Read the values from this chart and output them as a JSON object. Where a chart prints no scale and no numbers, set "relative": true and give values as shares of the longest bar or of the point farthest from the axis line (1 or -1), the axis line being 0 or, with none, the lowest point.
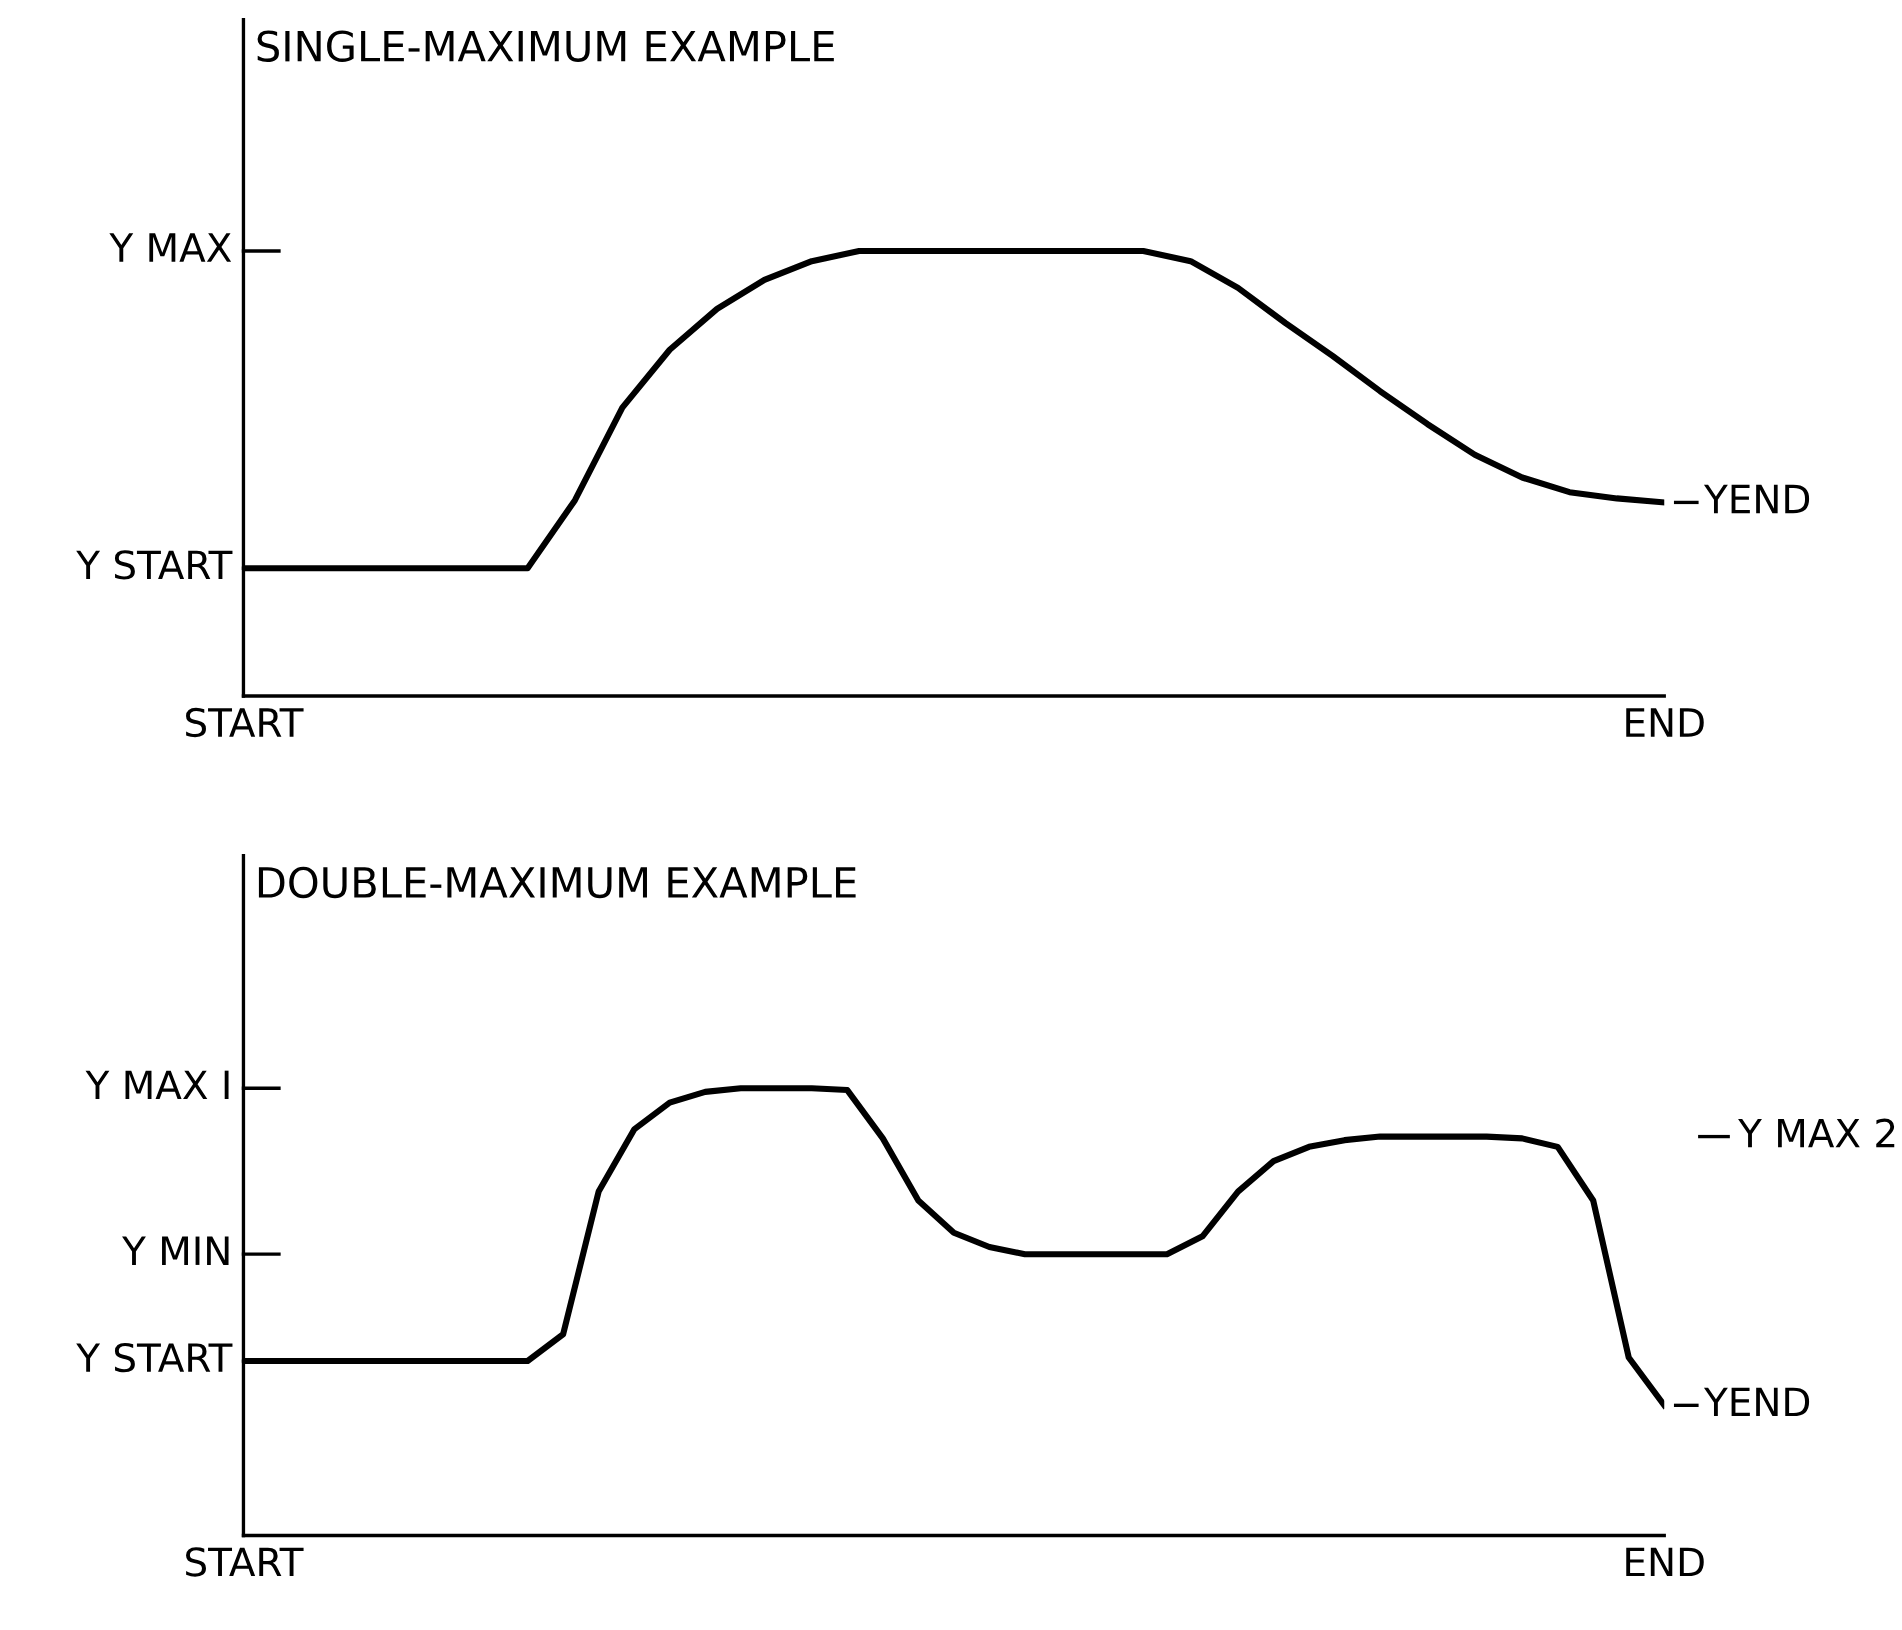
{
  "chart_data": [
    {
      "type": "line",
      "title": "SINGLE-MAXIMUM EXAMPLE",
      "relative": true,
      "categories": [
        "START",
        null,
        null,
        null,
        null,
        null,
        null,
        null,
        null,
        null,
        null,
        null,
        null,
        null,
        null,
        null,
        null,
        null,
        null,
        null,
        null,
        null,
        null,
        null,
        null,
        null,
        null,
        null,
        null,
        null,
        "END"
      ],
      "series": [
        {
          "color": "#000000",
          "values": [
            0.287,
            0.287,
            0.287,
            0.287,
            0.287,
            0.287,
            0.287,
            0.44,
            0.648,
            0.778,
            0.87,
            0.935,
            0.977,
            1.0,
            1.0,
            1.0,
            1.0,
            1.0,
            1.0,
            1.0,
            0.977,
            0.917,
            0.838,
            0.764,
            0.685,
            0.611,
            0.542,
            0.491,
            0.458,
            0.444,
            0.435
          ]
        }
      ],
      "ref_lines": [
        {
          "axis": "y",
          "value": 1,
          "label": "Y MAX"
        },
        {
          "axis": "y",
          "value": 0.287,
          "label": "Y START"
        }
      ],
      "annotations": [
        {
          "text": "YEND",
          "x": "END",
          "y": 0.435
        }
      ]
    },
    {
      "type": "line",
      "title": "DOUBLE-MAXIMUM EXAMPLE",
      "relative": true,
      "categories": [
        "START",
        null,
        null,
        null,
        null,
        null,
        null,
        null,
        null,
        null,
        null,
        null,
        null,
        null,
        null,
        null,
        null,
        null,
        null,
        null,
        null,
        null,
        null,
        null,
        null,
        null,
        null,
        null,
        null,
        null,
        null,
        null,
        null,
        null,
        null,
        null,
        null,
        null,
        null,
        null,
        "END"
      ],
      "series": [
        {
          "color": "#000000",
          "values": [
            0.39,
            0.39,
            0.39,
            0.39,
            0.39,
            0.39,
            0.39,
            0.39,
            0.39,
            0.45,
            0.769,
            0.908,
            0.968,
            0.992,
            1.0,
            1.0,
            1.0,
            0.996,
            0.888,
            0.749,
            0.677,
            0.645,
            0.629,
            0.629,
            0.629,
            0.629,
            0.629,
            0.669,
            0.769,
            0.837,
            0.869,
            0.884,
            0.892,
            0.892,
            0.892,
            0.892,
            0.888,
            0.869,
            0.749,
            0.398,
            0.291
          ]
        }
      ],
      "ref_lines": [
        {
          "axis": "y",
          "value": 1,
          "label": "Y MAX I"
        },
        {
          "axis": "y",
          "value": 0.629,
          "label": "Y MIN"
        },
        {
          "axis": "y",
          "value": 0.39,
          "label": "Y START"
        }
      ],
      "annotations": [
        "Y MAX 2",
        {
          "text": "YEND",
          "x": "END",
          "y": 0.291
        }
      ]
    }
  ]
}
